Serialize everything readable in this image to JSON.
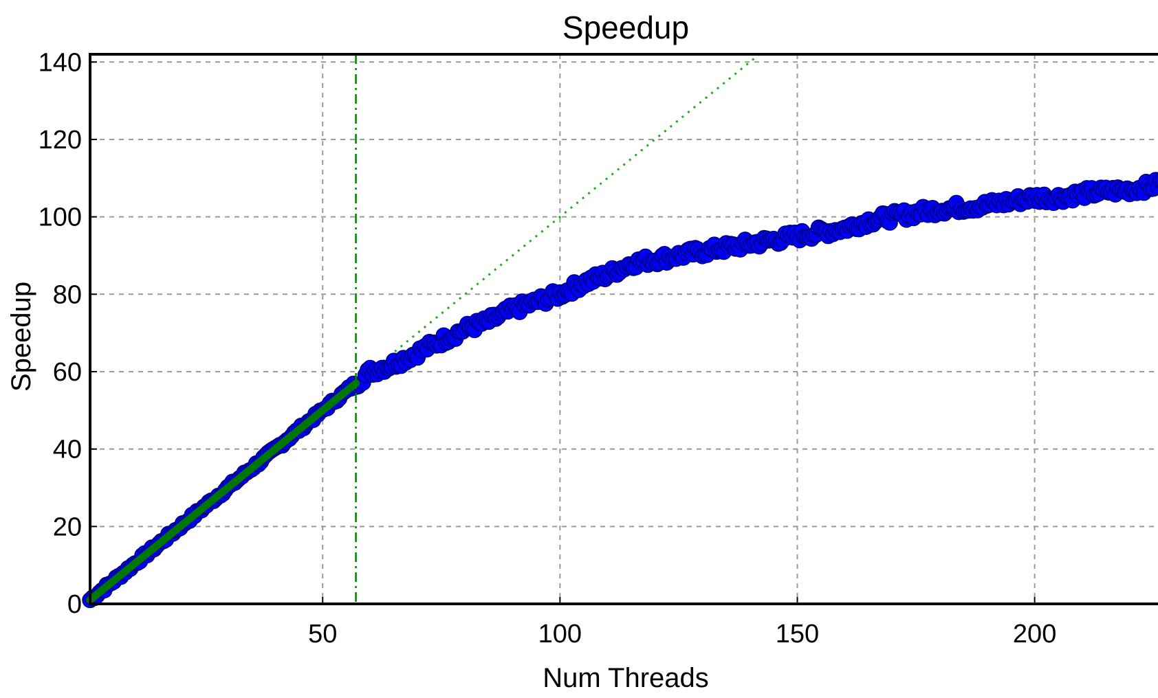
{
  "chart_data": {
    "type": "scatter",
    "title": "Speedup",
    "xlabel": "Num Threads",
    "ylabel": "Speedup",
    "xlim": [
      1,
      227
    ],
    "ylim": [
      0,
      142
    ],
    "xticks": [
      50,
      100,
      150,
      200
    ],
    "yticks": [
      0,
      20,
      40,
      60,
      80,
      100,
      120,
      140
    ],
    "grid": true,
    "colors": {
      "points_fill": "#0000ff",
      "points_edge": "#000080",
      "fit_line": "#007700",
      "ideal_line": "#22aa22",
      "threshold_line": "#008000",
      "grid": "#9a9a9a"
    },
    "threshold_x": 57,
    "ideal_line": {
      "x": [
        1,
        142
      ],
      "y": [
        1,
        142
      ]
    },
    "fit_line": {
      "x": [
        1,
        57
      ],
      "y": [
        1,
        57
      ]
    },
    "measured_samples": {
      "x": [
        1,
        10,
        20,
        30,
        40,
        50,
        57,
        60,
        65,
        70,
        75,
        80,
        85,
        90,
        95,
        100,
        105,
        110,
        115,
        120,
        125,
        130,
        135,
        140,
        145,
        150,
        155,
        160,
        165,
        170,
        175,
        180,
        185,
        190,
        195,
        200,
        205,
        210,
        215,
        220,
        225,
        227
      ],
      "y": [
        1,
        10,
        20,
        30,
        40,
        50,
        57,
        60,
        62,
        65,
        68,
        71,
        73,
        76,
        78,
        80,
        83,
        85,
        88,
        89,
        90,
        91,
        92,
        93,
        94,
        95,
        96,
        97,
        99,
        100,
        101,
        102,
        102.5,
        103,
        104,
        105,
        105,
        106,
        106.5,
        107,
        108,
        109
      ]
    }
  }
}
